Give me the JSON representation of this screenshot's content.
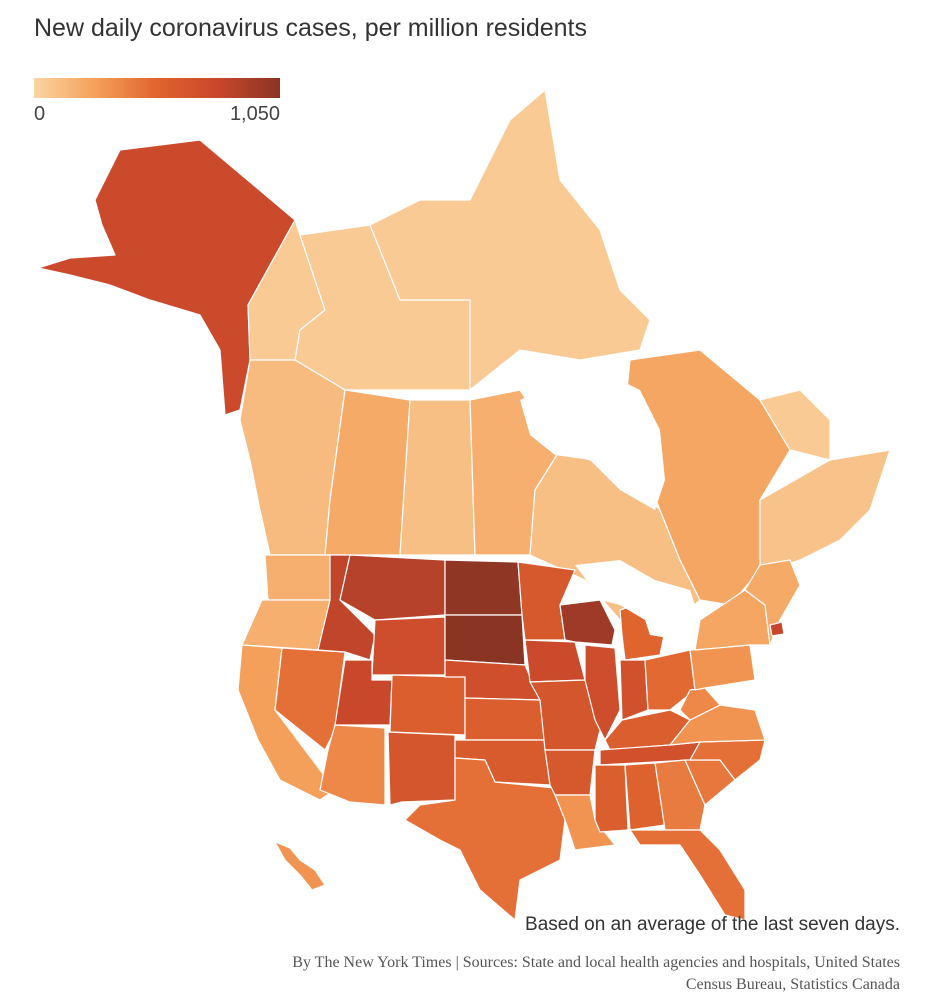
{
  "title": "New daily coronavirus cases, per million residents",
  "legend": {
    "min_label": "0",
    "max_label": "1,050",
    "min_value": 0,
    "max_value": 1050,
    "color_stops": [
      "#fad4a2",
      "#f5a05a",
      "#e0642e",
      "#c8472c",
      "#8a3424"
    ]
  },
  "note": "Based on an average of the last seven days.",
  "credit": {
    "line1": "By The New York Times | Sources: State and local health agencies and hospitals, United States",
    "line2": "Census Bureau, Statistics Canada"
  },
  "regions": [
    {
      "id": "alaska",
      "level": 0.72
    },
    {
      "id": "yukon",
      "level": 0.05
    },
    {
      "id": "northwest-territories",
      "level": 0.05
    },
    {
      "id": "nunavut",
      "level": 0.05
    },
    {
      "id": "british-columbia",
      "level": 0.12
    },
    {
      "id": "alberta",
      "level": 0.2
    },
    {
      "id": "saskatchewan",
      "level": 0.1
    },
    {
      "id": "manitoba",
      "level": 0.18
    },
    {
      "id": "ontario",
      "level": 0.1
    },
    {
      "id": "quebec",
      "level": 0.22
    },
    {
      "id": "labrador",
      "level": 0.05
    },
    {
      "id": "atlantic-canada",
      "level": 0.08
    },
    {
      "id": "washington",
      "level": 0.18
    },
    {
      "id": "oregon",
      "level": 0.18
    },
    {
      "id": "california",
      "level": 0.25
    },
    {
      "id": "nevada",
      "level": 0.45
    },
    {
      "id": "idaho",
      "level": 0.78
    },
    {
      "id": "montana",
      "level": 0.82
    },
    {
      "id": "wyoming",
      "level": 0.7
    },
    {
      "id": "utah",
      "level": 0.74
    },
    {
      "id": "arizona",
      "level": 0.35
    },
    {
      "id": "colorado",
      "level": 0.55
    },
    {
      "id": "new-mexico",
      "level": 0.62
    },
    {
      "id": "north-dakota",
      "level": 0.98
    },
    {
      "id": "south-dakota",
      "level": 1.0
    },
    {
      "id": "nebraska",
      "level": 0.68
    },
    {
      "id": "kansas",
      "level": 0.55
    },
    {
      "id": "oklahoma",
      "level": 0.58
    },
    {
      "id": "texas",
      "level": 0.45
    },
    {
      "id": "minnesota",
      "level": 0.6
    },
    {
      "id": "iowa",
      "level": 0.72
    },
    {
      "id": "missouri",
      "level": 0.62
    },
    {
      "id": "arkansas",
      "level": 0.6
    },
    {
      "id": "louisiana",
      "level": 0.3
    },
    {
      "id": "wisconsin",
      "level": 0.92
    },
    {
      "id": "illinois",
      "level": 0.7
    },
    {
      "id": "michigan",
      "level": 0.5
    },
    {
      "id": "indiana",
      "level": 0.66
    },
    {
      "id": "ohio",
      "level": 0.48
    },
    {
      "id": "kentucky",
      "level": 0.55
    },
    {
      "id": "tennessee",
      "level": 0.66
    },
    {
      "id": "mississippi",
      "level": 0.55
    },
    {
      "id": "alabama",
      "level": 0.52
    },
    {
      "id": "georgia",
      "level": 0.4
    },
    {
      "id": "florida",
      "level": 0.45
    },
    {
      "id": "south-carolina",
      "level": 0.42
    },
    {
      "id": "north-carolina",
      "level": 0.45
    },
    {
      "id": "virginia",
      "level": 0.3
    },
    {
      "id": "west-virginia",
      "level": 0.35
    },
    {
      "id": "pennsylvania",
      "level": 0.3
    },
    {
      "id": "new-york",
      "level": 0.22
    },
    {
      "id": "new-england",
      "level": 0.2
    },
    {
      "id": "rhode-island",
      "level": 0.75
    },
    {
      "id": "hawaii",
      "level": 0.3
    }
  ]
}
